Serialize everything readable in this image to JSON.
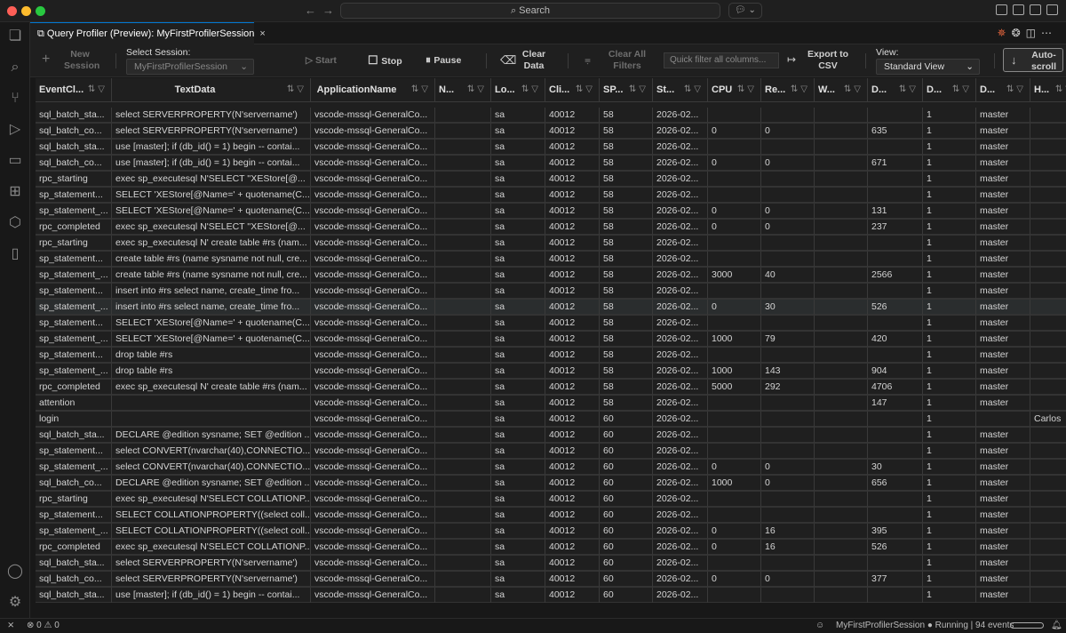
{
  "window": {
    "search_placeholder": "Search"
  },
  "tab": {
    "title": "Query Profiler (Preview): MyFirstProfilerSession",
    "close": "×"
  },
  "toolbar": {
    "new_session": "New Session",
    "select_session_label": "Select Session:",
    "selected_session": "MyFirstProfilerSession",
    "start": "Start",
    "stop": "Stop",
    "pause": "Pause",
    "clear_data": "Clear Data",
    "clear_all_filters": "Clear All Filters",
    "quick_filter_placeholder": "Quick filter all columns...",
    "export_csv": "Export to CSV",
    "view_label": "View:",
    "selected_view": "Standard View",
    "autoscroll": "Auto-scroll"
  },
  "columns": [
    "EventCl...",
    "TextData",
    "ApplicationName",
    "N...",
    "Lo...",
    "Cli...",
    "SP...",
    "St...",
    "CPU",
    "Re...",
    "W...",
    "D...",
    "D...",
    "D...",
    "H..."
  ],
  "rows": [
    [
      "sql_batch_sta...",
      "select SERVERPROPERTY(N'servername')",
      "vscode-mssql-GeneralCo...",
      "",
      "sa",
      "40012",
      "58",
      "2026-02...",
      "",
      "",
      "",
      "",
      "1",
      "master",
      ""
    ],
    [
      "sql_batch_co...",
      "select SERVERPROPERTY(N'servername')",
      "vscode-mssql-GeneralCo...",
      "",
      "sa",
      "40012",
      "58",
      "2026-02...",
      "0",
      "0",
      "",
      "635",
      "1",
      "master",
      ""
    ],
    [
      "sql_batch_sta...",
      "use [master]; if (db_id() = 1) begin -- contai...",
      "vscode-mssql-GeneralCo...",
      "",
      "sa",
      "40012",
      "58",
      "2026-02...",
      "",
      "",
      "",
      "",
      "1",
      "master",
      ""
    ],
    [
      "sql_batch_co...",
      "use [master]; if (db_id() = 1) begin -- contai...",
      "vscode-mssql-GeneralCo...",
      "",
      "sa",
      "40012",
      "58",
      "2026-02...",
      "0",
      "0",
      "",
      "671",
      "1",
      "master",
      ""
    ],
    [
      "rpc_starting",
      "exec sp_executesql N'SELECT ''XEStore[@...",
      "vscode-mssql-GeneralCo...",
      "",
      "sa",
      "40012",
      "58",
      "2026-02...",
      "",
      "",
      "",
      "",
      "1",
      "master",
      ""
    ],
    [
      "sp_statement...",
      "SELECT 'XEStore[@Name=' + quotename(C...",
      "vscode-mssql-GeneralCo...",
      "",
      "sa",
      "40012",
      "58",
      "2026-02...",
      "",
      "",
      "",
      "",
      "1",
      "master",
      ""
    ],
    [
      "sp_statement_...",
      "SELECT 'XEStore[@Name=' + quotename(C...",
      "vscode-mssql-GeneralCo...",
      "",
      "sa",
      "40012",
      "58",
      "2026-02...",
      "0",
      "0",
      "",
      "131",
      "1",
      "master",
      ""
    ],
    [
      "rpc_completed",
      "exec sp_executesql N'SELECT ''XEStore[@...",
      "vscode-mssql-GeneralCo...",
      "",
      "sa",
      "40012",
      "58",
      "2026-02...",
      "0",
      "0",
      "",
      "237",
      "1",
      "master",
      ""
    ],
    [
      "rpc_starting",
      "exec sp_executesql N' create table #rs (nam...",
      "vscode-mssql-GeneralCo...",
      "",
      "sa",
      "40012",
      "58",
      "2026-02...",
      "",
      "",
      "",
      "",
      "1",
      "master",
      ""
    ],
    [
      "sp_statement...",
      "create table #rs (name sysname not null, cre...",
      "vscode-mssql-GeneralCo...",
      "",
      "sa",
      "40012",
      "58",
      "2026-02...",
      "",
      "",
      "",
      "",
      "1",
      "master",
      ""
    ],
    [
      "sp_statement_...",
      "create table #rs (name sysname not null, cre...",
      "vscode-mssql-GeneralCo...",
      "",
      "sa",
      "40012",
      "58",
      "2026-02...",
      "3000",
      "40",
      "",
      "2566",
      "1",
      "master",
      ""
    ],
    [
      "sp_statement...",
      "insert into #rs select name, create_time fro...",
      "vscode-mssql-GeneralCo...",
      "",
      "sa",
      "40012",
      "58",
      "2026-02...",
      "",
      "",
      "",
      "",
      "1",
      "master",
      ""
    ],
    [
      "sp_statement_...",
      "insert into #rs select name, create_time fro...",
      "vscode-mssql-GeneralCo...",
      "",
      "sa",
      "40012",
      "58",
      "2026-02...",
      "0",
      "30",
      "",
      "526",
      "1",
      "master",
      ""
    ],
    [
      "sp_statement...",
      "SELECT 'XEStore[@Name=' + quotename(C...",
      "vscode-mssql-GeneralCo...",
      "",
      "sa",
      "40012",
      "58",
      "2026-02...",
      "",
      "",
      "",
      "",
      "1",
      "master",
      ""
    ],
    [
      "sp_statement_...",
      "SELECT 'XEStore[@Name=' + quotename(C...",
      "vscode-mssql-GeneralCo...",
      "",
      "sa",
      "40012",
      "58",
      "2026-02...",
      "1000",
      "79",
      "",
      "420",
      "1",
      "master",
      ""
    ],
    [
      "sp_statement...",
      "drop table #rs",
      "vscode-mssql-GeneralCo...",
      "",
      "sa",
      "40012",
      "58",
      "2026-02...",
      "",
      "",
      "",
      "",
      "1",
      "master",
      ""
    ],
    [
      "sp_statement_...",
      "drop table #rs",
      "vscode-mssql-GeneralCo...",
      "",
      "sa",
      "40012",
      "58",
      "2026-02...",
      "1000",
      "143",
      "",
      "904",
      "1",
      "master",
      ""
    ],
    [
      "rpc_completed",
      "exec sp_executesql N' create table #rs (nam...",
      "vscode-mssql-GeneralCo...",
      "",
      "sa",
      "40012",
      "58",
      "2026-02...",
      "5000",
      "292",
      "",
      "4706",
      "1",
      "master",
      ""
    ],
    [
      "attention",
      "",
      "vscode-mssql-GeneralCo...",
      "",
      "sa",
      "40012",
      "58",
      "2026-02...",
      "",
      "",
      "",
      "147",
      "1",
      "master",
      ""
    ],
    [
      "login",
      "",
      "vscode-mssql-GeneralCo...",
      "",
      "sa",
      "40012",
      "60",
      "2026-02...",
      "",
      "",
      "",
      "",
      "1",
      "",
      "Carlos"
    ],
    [
      "sql_batch_sta...",
      "DECLARE @edition sysname; SET @edition ...",
      "vscode-mssql-GeneralCo...",
      "",
      "sa",
      "40012",
      "60",
      "2026-02...",
      "",
      "",
      "",
      "",
      "1",
      "master",
      ""
    ],
    [
      "sp_statement...",
      "select CONVERT(nvarchar(40),CONNECTIO...",
      "vscode-mssql-GeneralCo...",
      "",
      "sa",
      "40012",
      "60",
      "2026-02...",
      "",
      "",
      "",
      "",
      "1",
      "master",
      ""
    ],
    [
      "sp_statement_...",
      "select CONVERT(nvarchar(40),CONNECTIO...",
      "vscode-mssql-GeneralCo...",
      "",
      "sa",
      "40012",
      "60",
      "2026-02...",
      "0",
      "0",
      "",
      "30",
      "1",
      "master",
      ""
    ],
    [
      "sql_batch_co...",
      "DECLARE @edition sysname; SET @edition ...",
      "vscode-mssql-GeneralCo...",
      "",
      "sa",
      "40012",
      "60",
      "2026-02...",
      "1000",
      "0",
      "",
      "656",
      "1",
      "master",
      ""
    ],
    [
      "rpc_starting",
      "exec sp_executesql N'SELECT COLLATIONP...",
      "vscode-mssql-GeneralCo...",
      "",
      "sa",
      "40012",
      "60",
      "2026-02...",
      "",
      "",
      "",
      "",
      "1",
      "master",
      ""
    ],
    [
      "sp_statement...",
      "SELECT COLLATIONPROPERTY((select coll...",
      "vscode-mssql-GeneralCo...",
      "",
      "sa",
      "40012",
      "60",
      "2026-02...",
      "",
      "",
      "",
      "",
      "1",
      "master",
      ""
    ],
    [
      "sp_statement_...",
      "SELECT COLLATIONPROPERTY((select coll...",
      "vscode-mssql-GeneralCo...",
      "",
      "sa",
      "40012",
      "60",
      "2026-02...",
      "0",
      "16",
      "",
      "395",
      "1",
      "master",
      ""
    ],
    [
      "rpc_completed",
      "exec sp_executesql N'SELECT COLLATIONP...",
      "vscode-mssql-GeneralCo...",
      "",
      "sa",
      "40012",
      "60",
      "2026-02...",
      "0",
      "16",
      "",
      "526",
      "1",
      "master",
      ""
    ],
    [
      "sql_batch_sta...",
      "select SERVERPROPERTY(N'servername')",
      "vscode-mssql-GeneralCo...",
      "",
      "sa",
      "40012",
      "60",
      "2026-02...",
      "",
      "",
      "",
      "",
      "1",
      "master",
      ""
    ],
    [
      "sql_batch_co...",
      "select SERVERPROPERTY(N'servername')",
      "vscode-mssql-GeneralCo...",
      "",
      "sa",
      "40012",
      "60",
      "2026-02...",
      "0",
      "0",
      "",
      "377",
      "1",
      "master",
      ""
    ],
    [
      "sql_batch_sta...",
      "use [master]; if (db_id() = 1) begin -- contai...",
      "vscode-mssql-GeneralCo...",
      "",
      "sa",
      "40012",
      "60",
      "2026-02...",
      "",
      "",
      "",
      "",
      "1",
      "master",
      ""
    ]
  ],
  "selected_row": 12,
  "status": {
    "errors": "0",
    "warnings": "0",
    "session": "MyFirstProfilerSession",
    "state": "Running | 94 events"
  },
  "colors": {
    "accent": "#0078d4",
    "background": "#1f1f1f"
  }
}
